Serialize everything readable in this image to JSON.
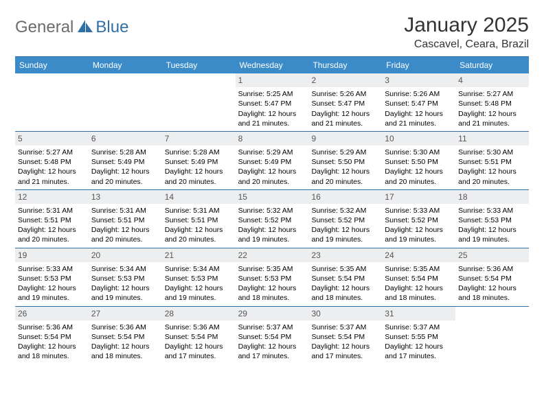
{
  "logo": {
    "text1": "General",
    "text2": "Blue"
  },
  "title": "January 2025",
  "location": "Cascavel, Ceara, Brazil",
  "weekday_bg": "#3b8bc9",
  "border_color": "#2f6fa8",
  "daynum_bg": "#eceef0",
  "weekdays": [
    "Sunday",
    "Monday",
    "Tuesday",
    "Wednesday",
    "Thursday",
    "Friday",
    "Saturday"
  ],
  "weeks": [
    [
      null,
      null,
      null,
      {
        "n": "1",
        "sr": "5:25 AM",
        "ss": "5:47 PM",
        "dl": "12 hours and 21 minutes."
      },
      {
        "n": "2",
        "sr": "5:26 AM",
        "ss": "5:47 PM",
        "dl": "12 hours and 21 minutes."
      },
      {
        "n": "3",
        "sr": "5:26 AM",
        "ss": "5:47 PM",
        "dl": "12 hours and 21 minutes."
      },
      {
        "n": "4",
        "sr": "5:27 AM",
        "ss": "5:48 PM",
        "dl": "12 hours and 21 minutes."
      }
    ],
    [
      {
        "n": "5",
        "sr": "5:27 AM",
        "ss": "5:48 PM",
        "dl": "12 hours and 21 minutes."
      },
      {
        "n": "6",
        "sr": "5:28 AM",
        "ss": "5:49 PM",
        "dl": "12 hours and 20 minutes."
      },
      {
        "n": "7",
        "sr": "5:28 AM",
        "ss": "5:49 PM",
        "dl": "12 hours and 20 minutes."
      },
      {
        "n": "8",
        "sr": "5:29 AM",
        "ss": "5:49 PM",
        "dl": "12 hours and 20 minutes."
      },
      {
        "n": "9",
        "sr": "5:29 AM",
        "ss": "5:50 PM",
        "dl": "12 hours and 20 minutes."
      },
      {
        "n": "10",
        "sr": "5:30 AM",
        "ss": "5:50 PM",
        "dl": "12 hours and 20 minutes."
      },
      {
        "n": "11",
        "sr": "5:30 AM",
        "ss": "5:51 PM",
        "dl": "12 hours and 20 minutes."
      }
    ],
    [
      {
        "n": "12",
        "sr": "5:31 AM",
        "ss": "5:51 PM",
        "dl": "12 hours and 20 minutes."
      },
      {
        "n": "13",
        "sr": "5:31 AM",
        "ss": "5:51 PM",
        "dl": "12 hours and 20 minutes."
      },
      {
        "n": "14",
        "sr": "5:31 AM",
        "ss": "5:51 PM",
        "dl": "12 hours and 20 minutes."
      },
      {
        "n": "15",
        "sr": "5:32 AM",
        "ss": "5:52 PM",
        "dl": "12 hours and 19 minutes."
      },
      {
        "n": "16",
        "sr": "5:32 AM",
        "ss": "5:52 PM",
        "dl": "12 hours and 19 minutes."
      },
      {
        "n": "17",
        "sr": "5:33 AM",
        "ss": "5:52 PM",
        "dl": "12 hours and 19 minutes."
      },
      {
        "n": "18",
        "sr": "5:33 AM",
        "ss": "5:53 PM",
        "dl": "12 hours and 19 minutes."
      }
    ],
    [
      {
        "n": "19",
        "sr": "5:33 AM",
        "ss": "5:53 PM",
        "dl": "12 hours and 19 minutes."
      },
      {
        "n": "20",
        "sr": "5:34 AM",
        "ss": "5:53 PM",
        "dl": "12 hours and 19 minutes."
      },
      {
        "n": "21",
        "sr": "5:34 AM",
        "ss": "5:53 PM",
        "dl": "12 hours and 19 minutes."
      },
      {
        "n": "22",
        "sr": "5:35 AM",
        "ss": "5:53 PM",
        "dl": "12 hours and 18 minutes."
      },
      {
        "n": "23",
        "sr": "5:35 AM",
        "ss": "5:54 PM",
        "dl": "12 hours and 18 minutes."
      },
      {
        "n": "24",
        "sr": "5:35 AM",
        "ss": "5:54 PM",
        "dl": "12 hours and 18 minutes."
      },
      {
        "n": "25",
        "sr": "5:36 AM",
        "ss": "5:54 PM",
        "dl": "12 hours and 18 minutes."
      }
    ],
    [
      {
        "n": "26",
        "sr": "5:36 AM",
        "ss": "5:54 PM",
        "dl": "12 hours and 18 minutes."
      },
      {
        "n": "27",
        "sr": "5:36 AM",
        "ss": "5:54 PM",
        "dl": "12 hours and 18 minutes."
      },
      {
        "n": "28",
        "sr": "5:36 AM",
        "ss": "5:54 PM",
        "dl": "12 hours and 17 minutes."
      },
      {
        "n": "29",
        "sr": "5:37 AM",
        "ss": "5:54 PM",
        "dl": "12 hours and 17 minutes."
      },
      {
        "n": "30",
        "sr": "5:37 AM",
        "ss": "5:54 PM",
        "dl": "12 hours and 17 minutes."
      },
      {
        "n": "31",
        "sr": "5:37 AM",
        "ss": "5:55 PM",
        "dl": "12 hours and 17 minutes."
      },
      null
    ]
  ],
  "labels": {
    "sunrise": "Sunrise:",
    "sunset": "Sunset:",
    "daylight": "Daylight:"
  }
}
